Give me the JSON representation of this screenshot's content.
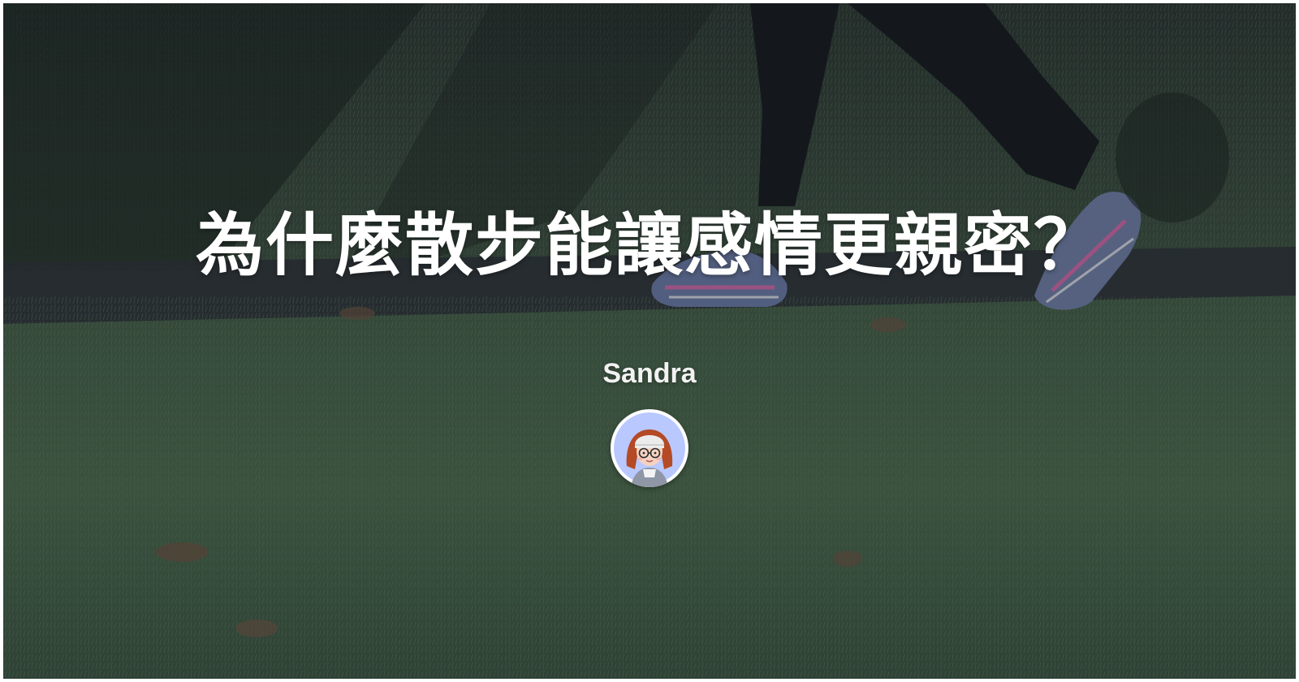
{
  "cover": {
    "title": "為什麼散步能讓感情更親密？",
    "author_name": "Sandra",
    "background_icon": "grass-walking-scene",
    "avatar_icon": "cartoon-avatar-icon"
  },
  "colors": {
    "grass": "#3f5a3d",
    "shadow": "#1d2a22",
    "path": "#30353a",
    "title_text": "#ffffff",
    "avatar_bg": "#b9c8ff"
  }
}
